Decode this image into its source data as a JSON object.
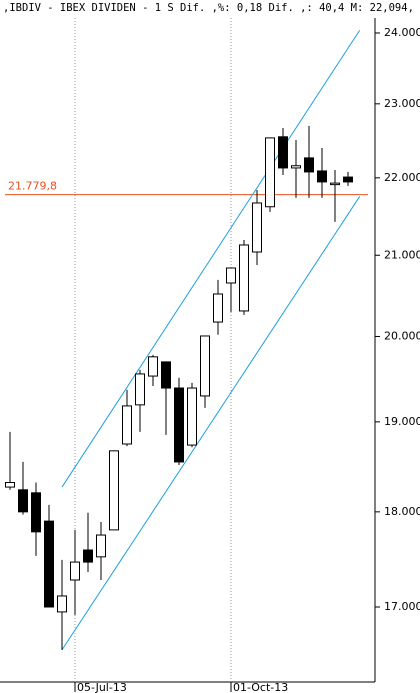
{
  "chart_data": {
    "type": "candlestick",
    "title": "‚IBDIV - IBEX DIVIDEN -  1 S Dif. ,%: 0,18 Dif. ,: 40,4 M: 22,094,",
    "categories": [
      null,
      null,
      null,
      null,
      null,
      "05-Jul-13",
      null,
      null,
      null,
      null,
      null,
      null,
      null,
      null,
      null,
      null,
      null,
      "01-Oct-13",
      null,
      null,
      null,
      null,
      null,
      null,
      null,
      null,
      null
    ],
    "open": [
      18270,
      18240,
      18207,
      17900,
      16950,
      17278,
      17592,
      17520,
      17806,
      18749,
      19195,
      19530,
      19697,
      19390,
      18737,
      19298,
      20174,
      20653,
      20309,
      21041,
      21621,
      22549,
      22131,
      22265,
      22091,
      21919,
      22010
    ],
    "high": [
      18886,
      18548,
      18320,
      18075,
      17488,
      17806,
      17990,
      17890,
      18672,
      19368,
      19603,
      19780,
      19697,
      19510,
      19450,
      20006,
      20691,
      20840,
      21194,
      21840,
      22534,
      22668,
      22505,
      22697,
      22397,
      22104,
      22078
    ],
    "low": [
      18240,
      17970,
      17530,
      17000,
      16568,
      16920,
      17361,
      17278,
      17806,
      18725,
      18886,
      19414,
      18852,
      18514,
      18713,
      19160,
      20020,
      20297,
      20261,
      20878,
      21554,
      22037,
      21737,
      21737,
      21737,
      21425,
      21893
    ],
    "close": [
      18320,
      18000,
      17785,
      17000,
      17113,
      17465,
      17465,
      17751,
      18672,
      19183,
      19555,
      19757,
      19390,
      18548,
      19390,
      20006,
      20517,
      20840,
      21130,
      21670,
      22534,
      22131,
      22160,
      22078,
      21946,
      21930,
      21946
    ],
    "log_scale": true,
    "ylim": [
      16251,
      24217
    ],
    "yticks": [
      {
        "value": 17000,
        "label": "17.000"
      },
      {
        "value": 18000,
        "label": "18.000"
      },
      {
        "value": 19000,
        "label": "19.000"
      },
      {
        "value": 20000,
        "label": "20.000"
      },
      {
        "value": 21000,
        "label": "21.000"
      },
      {
        "value": 22000,
        "label": "22.000"
      },
      {
        "value": 23000,
        "label": "23.000"
      },
      {
        "value": 24000,
        "label": "24.000"
      }
    ],
    "up_color": "#ffffff",
    "down_color": "#000000",
    "reference_line": {
      "value": 21779.8,
      "label": "21.779,8",
      "color": "#e8501c"
    },
    "trendlines": [
      {
        "x": [
          4,
          26.9
        ],
        "values": [
          18270,
          24040
        ],
        "color": "#1ea0dc"
      },
      {
        "x": [
          4,
          26.9
        ],
        "values": [
          16568,
          21755
        ],
        "color": "#1ea0dc"
      }
    ]
  }
}
